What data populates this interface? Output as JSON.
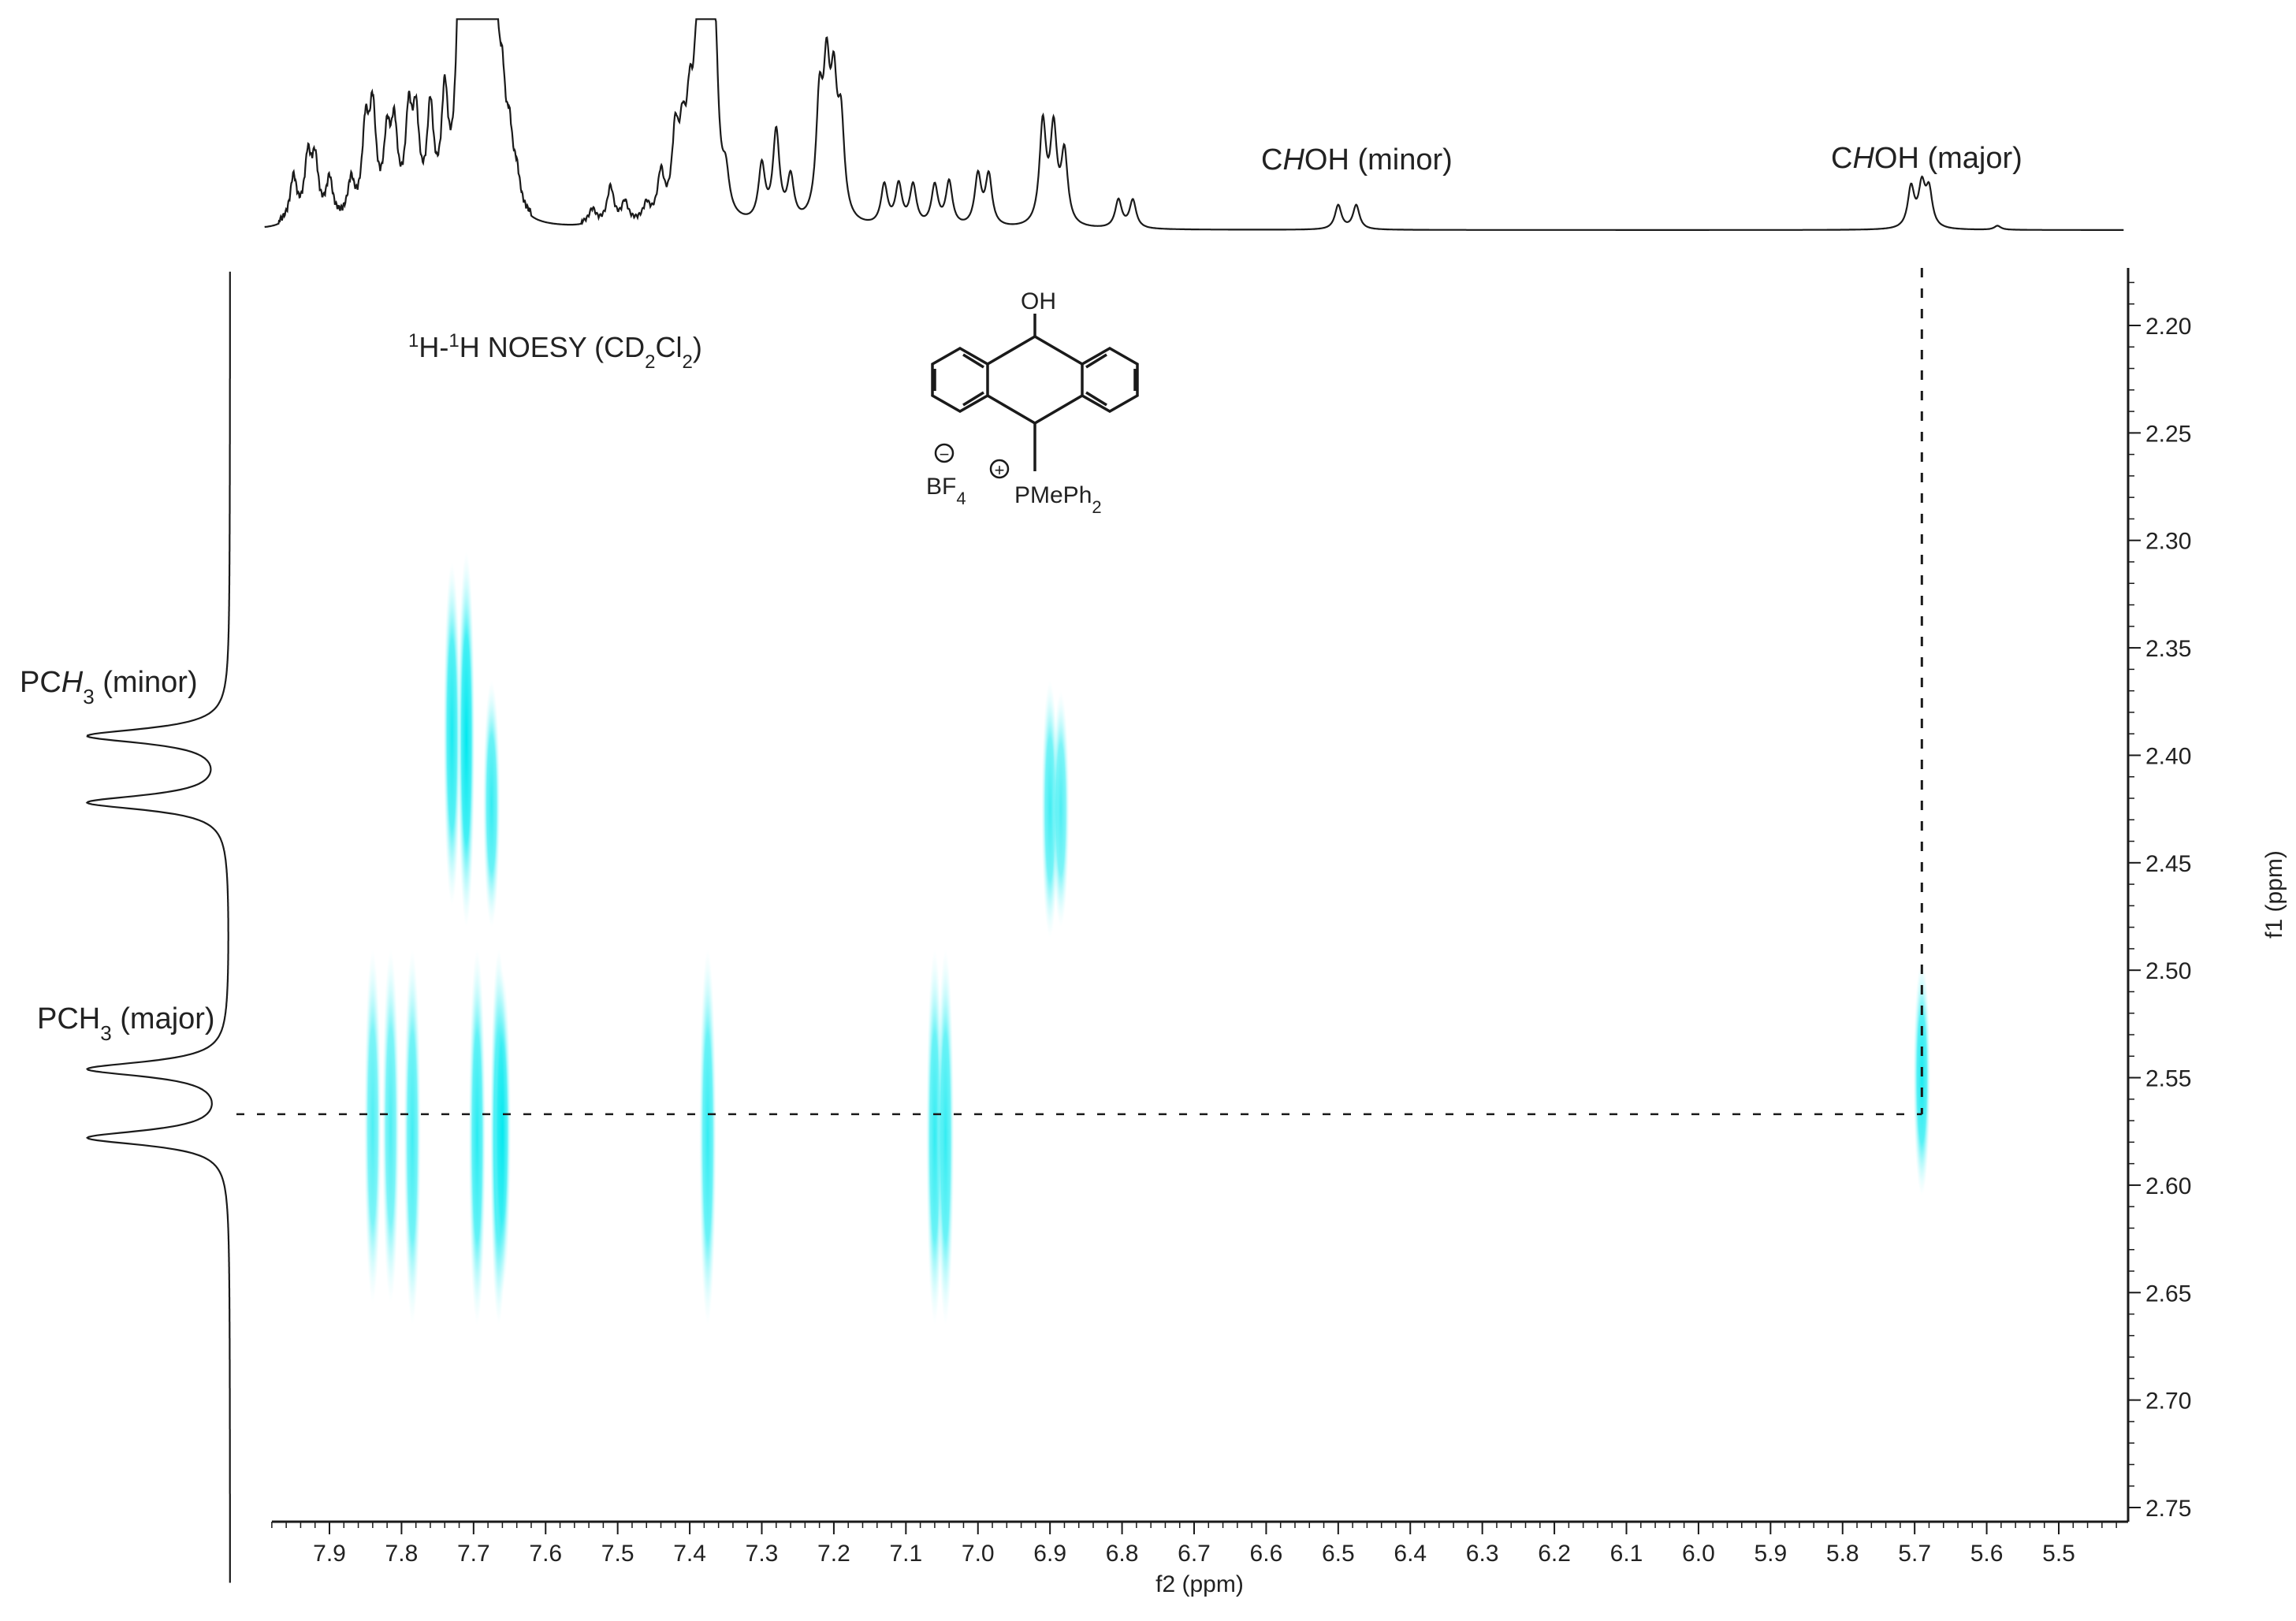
{
  "chart_data": {
    "type": "heatmap",
    "subtype": "2D NMR NOESY contour plot",
    "title_parts": [
      "1",
      "H-",
      "1",
      "H NOESY (CD",
      "2",
      "Cl",
      "2",
      ")"
    ],
    "xlabel": "f2 (ppm)",
    "ylabel": "f1 (ppm)",
    "x_axis": {
      "reversed": true,
      "range": [
        7.99,
        5.41
      ],
      "ticks": [
        7.9,
        7.8,
        7.7,
        7.6,
        7.5,
        7.4,
        7.3,
        7.2,
        7.1,
        7.0,
        6.9,
        6.8,
        6.7,
        6.6,
        6.5,
        6.4,
        6.3,
        6.2,
        6.1,
        6.0,
        5.9,
        5.8,
        5.7,
        5.6,
        5.5
      ],
      "tick_labels": [
        "7.9",
        "7.8",
        "7.7",
        "7.6",
        "7.5",
        "7.4",
        "7.3",
        "7.2",
        "7.1",
        "7.0",
        "6.9",
        "6.8",
        "6.7",
        "6.6",
        "6.5",
        "6.4",
        "6.3",
        "6.2",
        "6.1",
        "6.0",
        "5.9",
        "5.8",
        "5.7",
        "5.6",
        "5.5"
      ]
    },
    "y_axis": {
      "position": "right",
      "range": [
        2.175,
        2.755
      ],
      "ticks": [
        2.2,
        2.25,
        2.3,
        2.35,
        2.4,
        2.45,
        2.5,
        2.55,
        2.6,
        2.65,
        2.7,
        2.75
      ],
      "tick_labels": [
        "2.20",
        "2.25",
        "2.30",
        "2.35",
        "2.40",
        "2.45",
        "2.50",
        "2.55",
        "2.60",
        "2.65",
        "2.70",
        "2.75"
      ]
    },
    "cross_peaks": [
      {
        "x": 7.71,
        "y": 2.39,
        "y_span": [
          2.305,
          2.48
        ],
        "intensity": 1.0
      },
      {
        "x": 7.73,
        "y": 2.39,
        "y_span": [
          2.31,
          2.47
        ],
        "intensity": 0.9
      },
      {
        "x": 7.675,
        "y": 2.42,
        "y_span": [
          2.365,
          2.48
        ],
        "intensity": 0.8
      },
      {
        "x": 6.9,
        "y": 2.425,
        "y_span": [
          2.365,
          2.485
        ],
        "intensity": 0.75
      },
      {
        "x": 6.885,
        "y": 2.425,
        "y_span": [
          2.37,
          2.48
        ],
        "intensity": 0.7
      },
      {
        "x": 7.84,
        "y": 2.575,
        "y_span": [
          2.49,
          2.655
        ],
        "intensity": 0.7
      },
      {
        "x": 7.815,
        "y": 2.575,
        "y_span": [
          2.49,
          2.655
        ],
        "intensity": 0.7
      },
      {
        "x": 7.785,
        "y": 2.575,
        "y_span": [
          2.49,
          2.665
        ],
        "intensity": 0.75
      },
      {
        "x": 7.695,
        "y": 2.58,
        "y_span": [
          2.49,
          2.665
        ],
        "intensity": 0.85
      },
      {
        "x": 7.665,
        "y": 2.575,
        "y_span": [
          2.49,
          2.665
        ],
        "intensity": 1.0
      },
      {
        "x": 7.66,
        "y": 2.57,
        "y_span": [
          2.5,
          2.65
        ],
        "intensity": 0.9
      },
      {
        "x": 7.375,
        "y": 2.575,
        "y_span": [
          2.49,
          2.665
        ],
        "intensity": 0.8
      },
      {
        "x": 7.06,
        "y": 2.575,
        "y_span": [
          2.49,
          2.665
        ],
        "intensity": 0.8
      },
      {
        "x": 7.045,
        "y": 2.575,
        "y_span": [
          2.49,
          2.665
        ],
        "intensity": 0.8
      },
      {
        "x": 5.69,
        "y": 2.55,
        "y_span": [
          2.495,
          2.605
        ],
        "intensity": 0.9
      }
    ],
    "crosshair": {
      "x": 5.69,
      "y": 2.567
    },
    "f2_projection_peaks": [
      {
        "x": 7.95,
        "h": 0.22
      },
      {
        "x": 7.93,
        "h": 0.3
      },
      {
        "x": 7.92,
        "h": 0.28
      },
      {
        "x": 7.9,
        "h": 0.2
      },
      {
        "x": 7.87,
        "h": 0.18
      },
      {
        "x": 7.85,
        "h": 0.42
      },
      {
        "x": 7.84,
        "h": 0.5
      },
      {
        "x": 7.82,
        "h": 0.36
      },
      {
        "x": 7.81,
        "h": 0.4
      },
      {
        "x": 7.79,
        "h": 0.46
      },
      {
        "x": 7.78,
        "h": 0.44
      },
      {
        "x": 7.76,
        "h": 0.5
      },
      {
        "x": 7.74,
        "h": 0.55
      },
      {
        "x": 7.72,
        "h": 0.95
      },
      {
        "x": 7.71,
        "h": 0.88
      },
      {
        "x": 7.7,
        "h": 0.9
      },
      {
        "x": 7.69,
        "h": 0.85
      },
      {
        "x": 7.68,
        "h": 0.96
      },
      {
        "x": 7.67,
        "h": 0.9
      },
      {
        "x": 7.66,
        "h": 0.45
      },
      {
        "x": 7.65,
        "h": 0.3
      },
      {
        "x": 7.64,
        "h": 0.15
      },
      {
        "x": 7.535,
        "h": 0.07
      },
      {
        "x": 7.51,
        "h": 0.18
      },
      {
        "x": 7.49,
        "h": 0.1
      },
      {
        "x": 7.46,
        "h": 0.08
      },
      {
        "x": 7.44,
        "h": 0.22
      },
      {
        "x": 7.42,
        "h": 0.38
      },
      {
        "x": 7.41,
        "h": 0.32
      },
      {
        "x": 7.4,
        "h": 0.42
      },
      {
        "x": 7.39,
        "h": 0.6
      },
      {
        "x": 7.38,
        "h": 0.88
      },
      {
        "x": 7.375,
        "h": 0.97
      },
      {
        "x": 7.365,
        "h": 0.72
      },
      {
        "x": 7.35,
        "h": 0.18
      },
      {
        "x": 7.3,
        "h": 0.28
      },
      {
        "x": 7.28,
        "h": 0.45
      },
      {
        "x": 7.26,
        "h": 0.22
      },
      {
        "x": 7.22,
        "h": 0.55
      },
      {
        "x": 7.21,
        "h": 0.65
      },
      {
        "x": 7.2,
        "h": 0.58
      },
      {
        "x": 7.19,
        "h": 0.45
      },
      {
        "x": 7.13,
        "h": 0.2
      },
      {
        "x": 7.11,
        "h": 0.2
      },
      {
        "x": 7.09,
        "h": 0.2
      },
      {
        "x": 7.06,
        "h": 0.2
      },
      {
        "x": 7.04,
        "h": 0.22
      },
      {
        "x": 7.0,
        "h": 0.25
      },
      {
        "x": 6.985,
        "h": 0.25
      },
      {
        "x": 6.91,
        "h": 0.5
      },
      {
        "x": 6.895,
        "h": 0.46
      },
      {
        "x": 6.88,
        "h": 0.35
      },
      {
        "x": 6.805,
        "h": 0.14
      },
      {
        "x": 6.785,
        "h": 0.14
      },
      {
        "x": 6.5,
        "h": 0.12
      },
      {
        "x": 6.475,
        "h": 0.12
      },
      {
        "x": 5.705,
        "h": 0.2
      },
      {
        "x": 5.69,
        "h": 0.2
      },
      {
        "x": 5.68,
        "h": 0.18
      },
      {
        "x": 5.585,
        "h": 0.02
      }
    ],
    "f1_projection_peaks": [
      {
        "y": 2.391,
        "h": 1.0
      },
      {
        "y": 2.422,
        "h": 1.0
      },
      {
        "y": 2.546,
        "h": 1.0
      },
      {
        "y": 2.578,
        "h": 1.0
      }
    ],
    "annotations": {
      "chohe_minor": {
        "pre": "C",
        "it": "H",
        "post": "OH (minor)"
      },
      "chohe_major": {
        "pre": "C",
        "it": "H",
        "post": "OH (major)"
      },
      "pch3_minor": {
        "pre": "PC",
        "it": "H",
        "sub": "3",
        "post": " (minor)"
      },
      "pch3_major": {
        "pre": "PCH",
        "sub": "3",
        "post": " (major)"
      }
    },
    "structure": {
      "oh": "OH",
      "bf": "BF",
      "bf_sub": "4",
      "minus": "−",
      "plus": "+",
      "p": "PMePh",
      "p_sub": "2"
    },
    "colors": {
      "peak": "#00e8ef",
      "line": "#1a1a1a",
      "background": "#ffffff"
    },
    "grid": false
  }
}
